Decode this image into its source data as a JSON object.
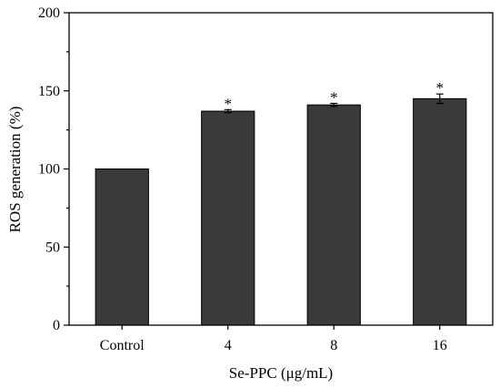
{
  "chart_data": {
    "type": "bar",
    "categories": [
      "Control",
      "4",
      "8",
      "16"
    ],
    "values": [
      100,
      137,
      141,
      145
    ],
    "errors": [
      0,
      1,
      1,
      3
    ],
    "annotations": [
      "",
      "*",
      "*",
      "*"
    ],
    "xlabel": "Se-PPC (μg/mL)",
    "ylabel": "ROS generation (%)",
    "ylim": [
      0,
      200
    ],
    "yticks": [
      0,
      50,
      100,
      150,
      200
    ],
    "bar_color": "#3a3a3a",
    "grid": false,
    "legend": "none"
  }
}
